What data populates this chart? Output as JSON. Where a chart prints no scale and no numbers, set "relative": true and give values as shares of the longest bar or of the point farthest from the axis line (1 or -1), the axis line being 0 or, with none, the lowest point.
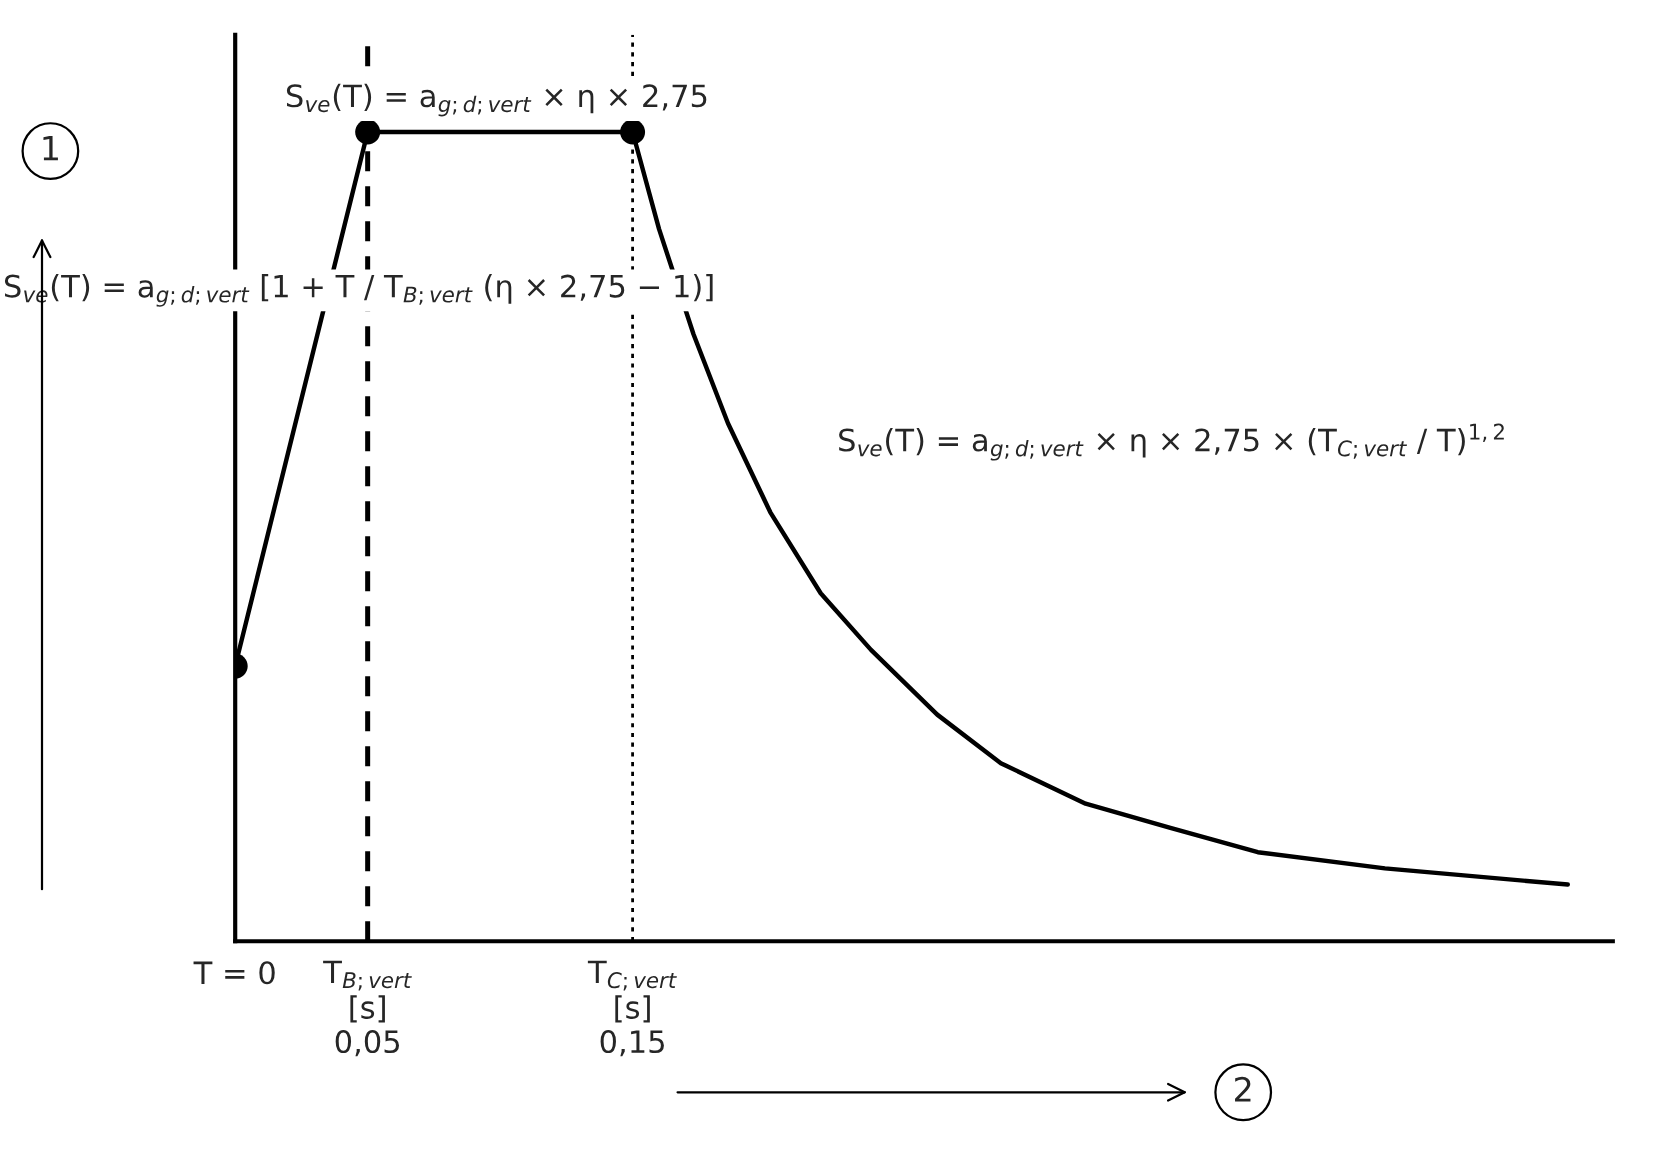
{
  "chart_data": {
    "type": "line",
    "relative": true,
    "xlabel": "2",
    "ylabel": "1",
    "xlim": [
      0,
      0.52
    ],
    "xticks": [
      {
        "value": 0,
        "label": "T = 0"
      },
      {
        "value": 0.05,
        "label": "T$_{B;vert}$\n[s]\n0,05"
      },
      {
        "value": 0.15,
        "label": "T$_{C;vert}$\n[s]\n0,15"
      }
    ],
    "series": [
      {
        "color": "#000000",
        "marker": "circle",
        "x": [
          0,
          0.05,
          0.15
        ],
        "values": [
          0.34,
          1.0,
          1.0
        ]
      },
      {
        "color": "#000000",
        "marker": "none",
        "x": [
          0.15,
          0.16,
          0.173,
          0.186,
          0.202,
          0.221,
          0.24,
          0.265,
          0.289,
          0.321,
          0.353,
          0.386,
          0.434,
          0.503
        ],
        "values": [
          1.0,
          0.88,
          0.75,
          0.64,
          0.53,
          0.43,
          0.36,
          0.28,
          0.22,
          0.17,
          0.14,
          0.11,
          0.09,
          0.07
        ]
      }
    ],
    "ref_lines": [
      {
        "axis": "x",
        "value": 0.05,
        "line_style": "dashed",
        "color": "#000000"
      },
      {
        "axis": "x",
        "value": 0.15,
        "line_style": "dotted",
        "color": "#000000"
      }
    ],
    "annotations": [
      "S$_{ve}$(T) = a$_{g;d;vert}$ × η × 2,75",
      "S$_{ve}$(T) = a$_{g;d;vert}$ [1 + T / T$_{B;vert}$ (η × 2,75 − 1)]",
      "S$_{ve}$(T) = a$_{g;d;vert}$ × η × 2,75 × (T$_{C;vert}$ / T)$^{1,2}$"
    ],
    "grid": false
  }
}
